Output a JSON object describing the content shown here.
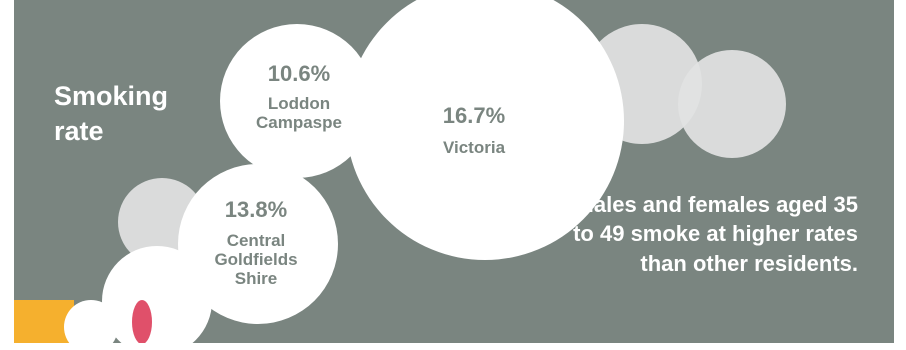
{
  "title": "Smoking rate",
  "regions": [
    {
      "value": "10.6%",
      "name": "Loddon Campaspe"
    },
    {
      "value": "16.7%",
      "name": "Victoria"
    },
    {
      "value": "13.8%",
      "name": "Central Goldfields Shire"
    }
  ],
  "note": "Males and females aged 35 to 49 smoke at higher rates than other residents.",
  "colors": {
    "background": "#7a8580",
    "bubble": "#ffffff",
    "bubble_light": "#e1e2e2",
    "filter": "#f5b02e",
    "ember": "#e0506a"
  }
}
